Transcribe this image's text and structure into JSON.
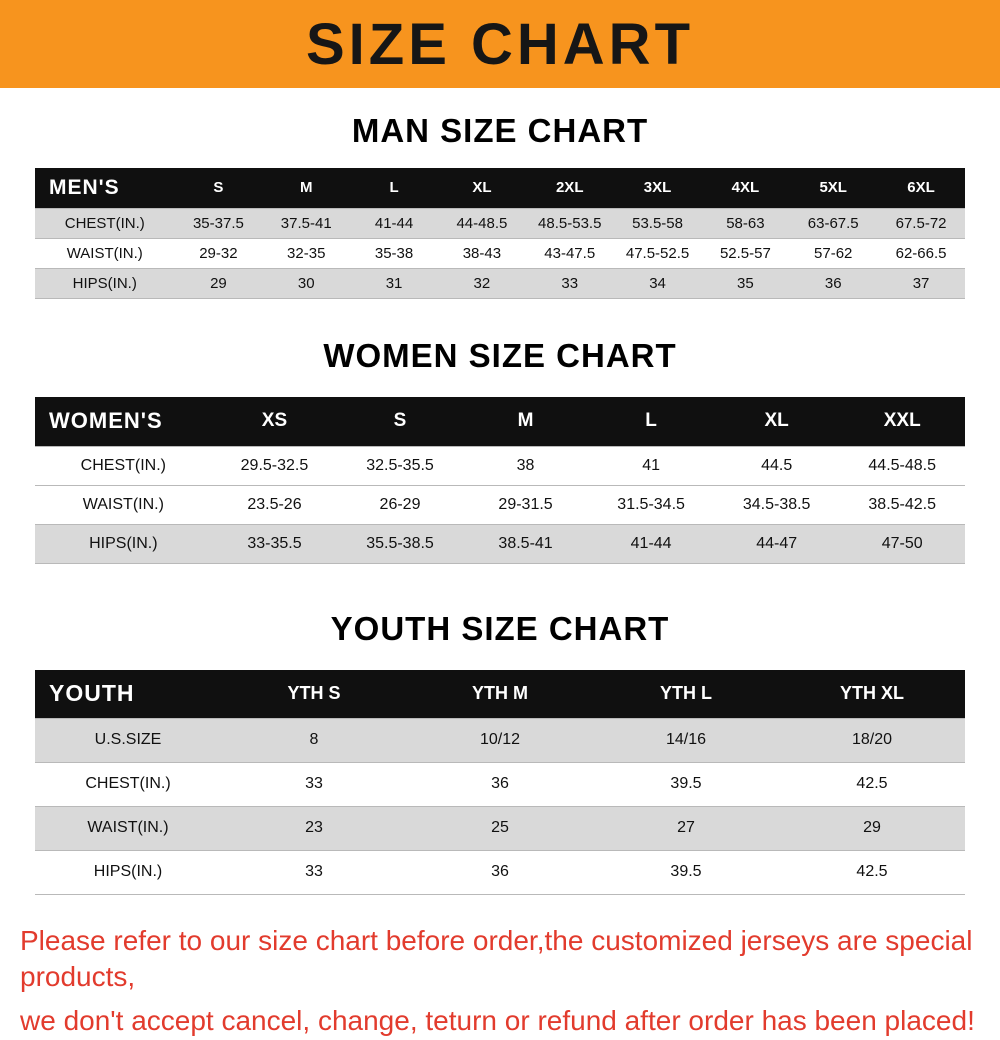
{
  "banner": {
    "title": "SIZE CHART"
  },
  "colors": {
    "banner_bg": "#f7941e",
    "table_header_bg": "#101010",
    "shaded_row_bg": "#d9d9d9",
    "footer_text": "#e23b2d"
  },
  "sections": [
    {
      "title": "MAN SIZE CHART",
      "table": {
        "header": [
          "MEN'S",
          "S",
          "M",
          "L",
          "XL",
          "2XL",
          "3XL",
          "4XL",
          "5XL",
          "6XL"
        ],
        "rows": [
          [
            "CHEST(IN.)",
            "35-37.5",
            "37.5-41",
            "41-44",
            "44-48.5",
            "48.5-53.5",
            "53.5-58",
            "58-63",
            "63-67.5",
            "67.5-72"
          ],
          [
            "WAIST(IN.)",
            "29-32",
            "32-35",
            "35-38",
            "38-43",
            "43-47.5",
            "47.5-52.5",
            "52.5-57",
            "57-62",
            "62-66.5"
          ],
          [
            "HIPS(IN.)",
            "29",
            "30",
            "31",
            "32",
            "33",
            "34",
            "35",
            "36",
            "37"
          ]
        ]
      }
    },
    {
      "title": "WOMEN SIZE CHART",
      "table": {
        "header": [
          "WOMEN'S",
          "XS",
          "S",
          "M",
          "L",
          "XL",
          "XXL"
        ],
        "rows": [
          [
            "CHEST(IN.)",
            "29.5-32.5",
            "32.5-35.5",
            "38",
            "41",
            "44.5",
            "44.5-48.5"
          ],
          [
            "WAIST(IN.)",
            "23.5-26",
            "26-29",
            "29-31.5",
            "31.5-34.5",
            "34.5-38.5",
            "38.5-42.5"
          ],
          [
            "HIPS(IN.)",
            "33-35.5",
            "35.5-38.5",
            "38.5-41",
            "41-44",
            "44-47",
            "47-50"
          ]
        ]
      }
    },
    {
      "title": "YOUTH SIZE CHART",
      "table": {
        "header": [
          "YOUTH",
          "YTH S",
          "YTH M",
          "YTH L",
          "YTH XL"
        ],
        "rows": [
          [
            "U.S.SIZE",
            "8",
            "10/12",
            "14/16",
            "18/20"
          ],
          [
            "CHEST(IN.)",
            "33",
            "36",
            "39.5",
            "42.5"
          ],
          [
            "WAIST(IN.)",
            "23",
            "25",
            "27",
            "29"
          ],
          [
            "HIPS(IN.)",
            "33",
            "36",
            "39.5",
            "42.5"
          ]
        ]
      }
    }
  ],
  "footer": {
    "line1": "Please refer to our size chart before order,the customized jerseys are special products,",
    "line2": "we don't accept cancel, change, teturn or refund after order has been placed!"
  }
}
